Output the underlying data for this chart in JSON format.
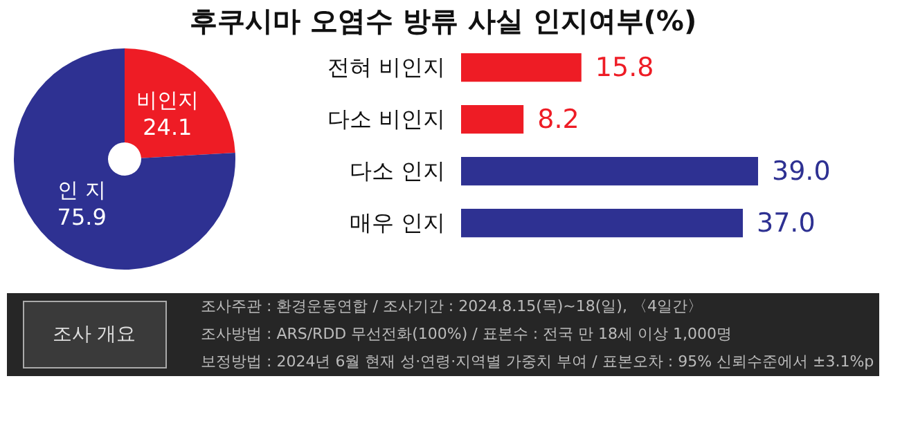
{
  "chart_data": [
    {
      "type": "donut",
      "title": "후쿠시마 오염수 방류 사실 인지여부(%)",
      "categories": [
        "비인지",
        "인 지"
      ],
      "values": [
        24.1,
        75.9
      ],
      "colors": [
        "#ee1c25",
        "#2e3192"
      ],
      "data_labels": true,
      "legend": false
    },
    {
      "type": "bar",
      "orientation": "horizontal",
      "categories": [
        "전혀 비인지",
        "다소 비인지",
        "다소 인지",
        "매우 인지"
      ],
      "values": [
        15.8,
        8.2,
        39.0,
        37.0
      ],
      "colors": [
        "#ee1c25",
        "#ee1c25",
        "#2e3192",
        "#2e3192"
      ],
      "tick_labels": "y",
      "value_labels": [
        "15.8",
        "8.2",
        "39.0",
        "37.0"
      ],
      "grid": false
    },
    {
      "type": "other",
      "title": "조사 개요",
      "annotations": [
        "조사주관 : 환경운동연합 / 조사기간 : 2024.8.15(목)~18(일), 〈4일간〉",
        "조사방법 : ARS/RDD 무선전화(100%) / 표본수 : 전국 만 18세 이상 1,000명",
        "보정방법 : 2024년 6월 현재 성·연령·지역별 가중치 부여 / 표본오차 : 95% 신뢰수준에서 ±3.1%p"
      ]
    }
  ]
}
